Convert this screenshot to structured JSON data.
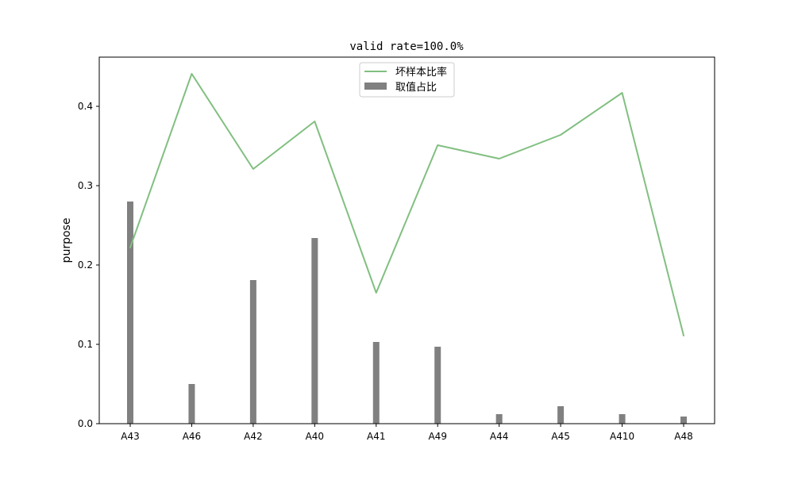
{
  "chart_data": {
    "type": "bar",
    "title": "valid rate=100.0%",
    "xlabel": "",
    "ylabel": "purpose",
    "categories": [
      "A43",
      "A46",
      "A42",
      "A40",
      "A41",
      "A49",
      "A44",
      "A45",
      "A410",
      "A48"
    ],
    "ylim": [
      0,
      0.462
    ],
    "yticks": [
      0.0,
      0.1,
      0.2,
      0.3,
      0.4
    ],
    "ytick_labels": [
      "0.0",
      "0.1",
      "0.2",
      "0.3",
      "0.4"
    ],
    "grid": false,
    "legend_position": "top-center",
    "series": [
      {
        "name": "坏样本比率",
        "kind": "line",
        "color": "#81bf81",
        "values": [
          0.222,
          0.441,
          0.321,
          0.381,
          0.165,
          0.351,
          0.334,
          0.364,
          0.417,
          0.111
        ]
      },
      {
        "name": "取值占比",
        "kind": "bar",
        "color": "#808080",
        "values": [
          0.28,
          0.05,
          0.181,
          0.234,
          0.103,
          0.097,
          0.012,
          0.022,
          0.012,
          0.009
        ]
      }
    ]
  }
}
